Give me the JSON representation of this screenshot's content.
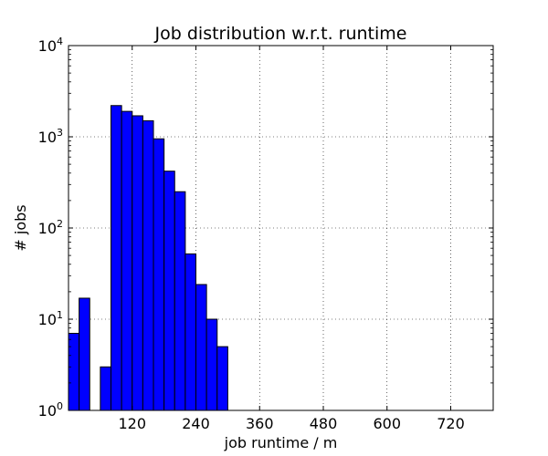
{
  "chart_data": {
    "type": "bar",
    "title": "Job distribution w.r.t. runtime",
    "xlabel": "job runtime / m",
    "ylabel": "# jobs",
    "xlim": [
      0,
      800
    ],
    "ylim": [
      1,
      10000
    ],
    "yscale": "log",
    "grid": true,
    "bar_color": "#0000ff",
    "bin_width": 20,
    "bins": [
      {
        "x": 0,
        "value": 7
      },
      {
        "x": 20,
        "value": 17
      },
      {
        "x": 40,
        "value": 0
      },
      {
        "x": 60,
        "value": 3
      },
      {
        "x": 80,
        "value": 2200
      },
      {
        "x": 100,
        "value": 1900
      },
      {
        "x": 120,
        "value": 1700
      },
      {
        "x": 140,
        "value": 1500
      },
      {
        "x": 160,
        "value": 950
      },
      {
        "x": 180,
        "value": 420
      },
      {
        "x": 200,
        "value": 250
      },
      {
        "x": 220,
        "value": 52
      },
      {
        "x": 240,
        "value": 24
      },
      {
        "x": 260,
        "value": 10
      },
      {
        "x": 280,
        "value": 5
      }
    ],
    "xticks": [
      120,
      240,
      360,
      480,
      600,
      720
    ],
    "xtick_labels": [
      "120",
      "240",
      "360",
      "480",
      "600",
      "720"
    ],
    "yticks": [
      1,
      10,
      100,
      1000,
      10000
    ],
    "ytick_labels": [
      {
        "base": "10",
        "exp": "0"
      },
      {
        "base": "10",
        "exp": "1"
      },
      {
        "base": "10",
        "exp": "2"
      },
      {
        "base": "10",
        "exp": "3"
      },
      {
        "base": "10",
        "exp": "4"
      }
    ]
  }
}
